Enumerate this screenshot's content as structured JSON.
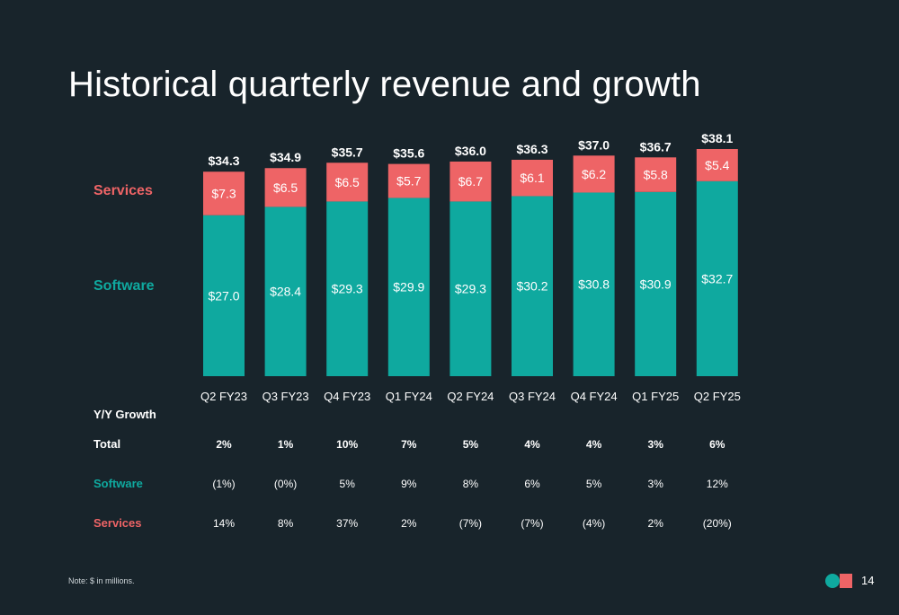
{
  "title": "Historical quarterly revenue and growth",
  "legend": {
    "services": "Services",
    "software": "Software"
  },
  "colors": {
    "background": "#18242b",
    "software": "#0fa99f",
    "services": "#ee6466"
  },
  "chart_data": {
    "type": "bar",
    "stacked": true,
    "categories": [
      "Q2 FY23",
      "Q3 FY23",
      "Q4 FY23",
      "Q1 FY24",
      "Q2 FY24",
      "Q3 FY24",
      "Q4 FY24",
      "Q1 FY25",
      "Q2 FY25"
    ],
    "series": [
      {
        "name": "Software",
        "values": [
          27.0,
          28.4,
          29.3,
          29.9,
          29.3,
          30.2,
          30.8,
          30.9,
          32.7
        ],
        "labels": [
          "$27.0",
          "$28.4",
          "$29.3",
          "$29.9",
          "$29.3",
          "$30.2",
          "$30.8",
          "$30.9",
          "$32.7"
        ]
      },
      {
        "name": "Services",
        "values": [
          7.3,
          6.5,
          6.5,
          5.7,
          6.7,
          6.1,
          6.2,
          5.8,
          5.4
        ],
        "labels": [
          "$7.3",
          "$6.5",
          "$6.5",
          "$5.7",
          "$6.7",
          "$6.1",
          "$6.2",
          "$5.8",
          "$5.4"
        ]
      }
    ],
    "totals": [
      34.3,
      34.9,
      35.7,
      35.6,
      36.0,
      36.3,
      37.0,
      36.7,
      38.1
    ],
    "total_labels": [
      "$34.3",
      "$34.9",
      "$35.7",
      "$35.6",
      "$36.0",
      "$36.3",
      "$37.0",
      "$36.7",
      "$38.1"
    ],
    "ylim": [
      0,
      38.1
    ]
  },
  "growth": {
    "title": "Y/Y Growth",
    "rows": [
      {
        "label": "Total",
        "values": [
          "2%",
          "1%",
          "10%",
          "7%",
          "5%",
          "4%",
          "4%",
          "3%",
          "6%"
        ]
      },
      {
        "label": "Software",
        "values": [
          "(1%)",
          "(0%)",
          "5%",
          "9%",
          "8%",
          "6%",
          "5%",
          "3%",
          "12%"
        ]
      },
      {
        "label": "Services",
        "values": [
          "14%",
          "8%",
          "37%",
          "2%",
          "(7%)",
          "(7%)",
          "(4%)",
          "2%",
          "(20%)"
        ]
      }
    ]
  },
  "footer": {
    "note": "Note: $ in millions.",
    "page_number": "14"
  }
}
